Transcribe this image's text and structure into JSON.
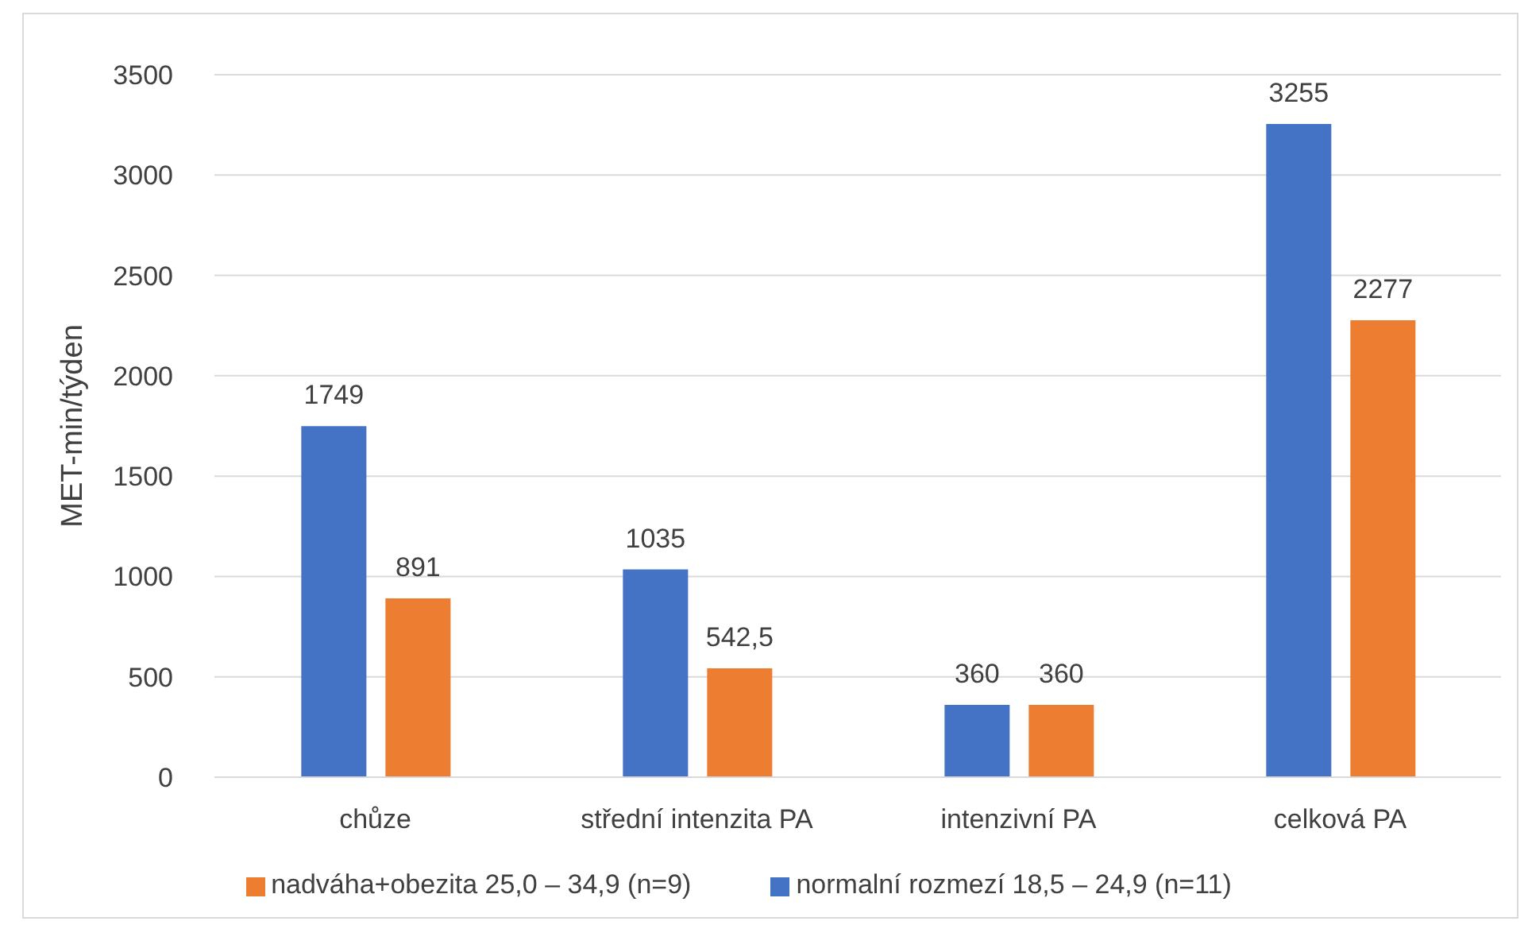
{
  "chart_data": {
    "type": "bar",
    "ylabel": "MET-min/týden",
    "categories": [
      "chůze",
      "střední intenzita PA",
      "intenzivní PA",
      "celková PA"
    ],
    "series": [
      {
        "name": "normalní rozmezí 18,5 – 24,9 (n=11)",
        "color": "#4472c4",
        "values": [
          1749,
          1035,
          360,
          3255
        ],
        "value_labels": [
          "1749",
          "1035",
          "360",
          "3255"
        ]
      },
      {
        "name": "nadváha+obezita 25,0 – 34,9 (n=9)",
        "color": "#ed7d31",
        "values": [
          891,
          542.5,
          360,
          2277
        ],
        "value_labels": [
          "891",
          "542,5",
          "360",
          "2277"
        ]
      }
    ],
    "ylim": [
      0,
      3500
    ],
    "yticks": [
      0,
      500,
      1000,
      1500,
      2000,
      2500,
      3000,
      3500
    ],
    "grid": "y",
    "legend": "bottom"
  }
}
